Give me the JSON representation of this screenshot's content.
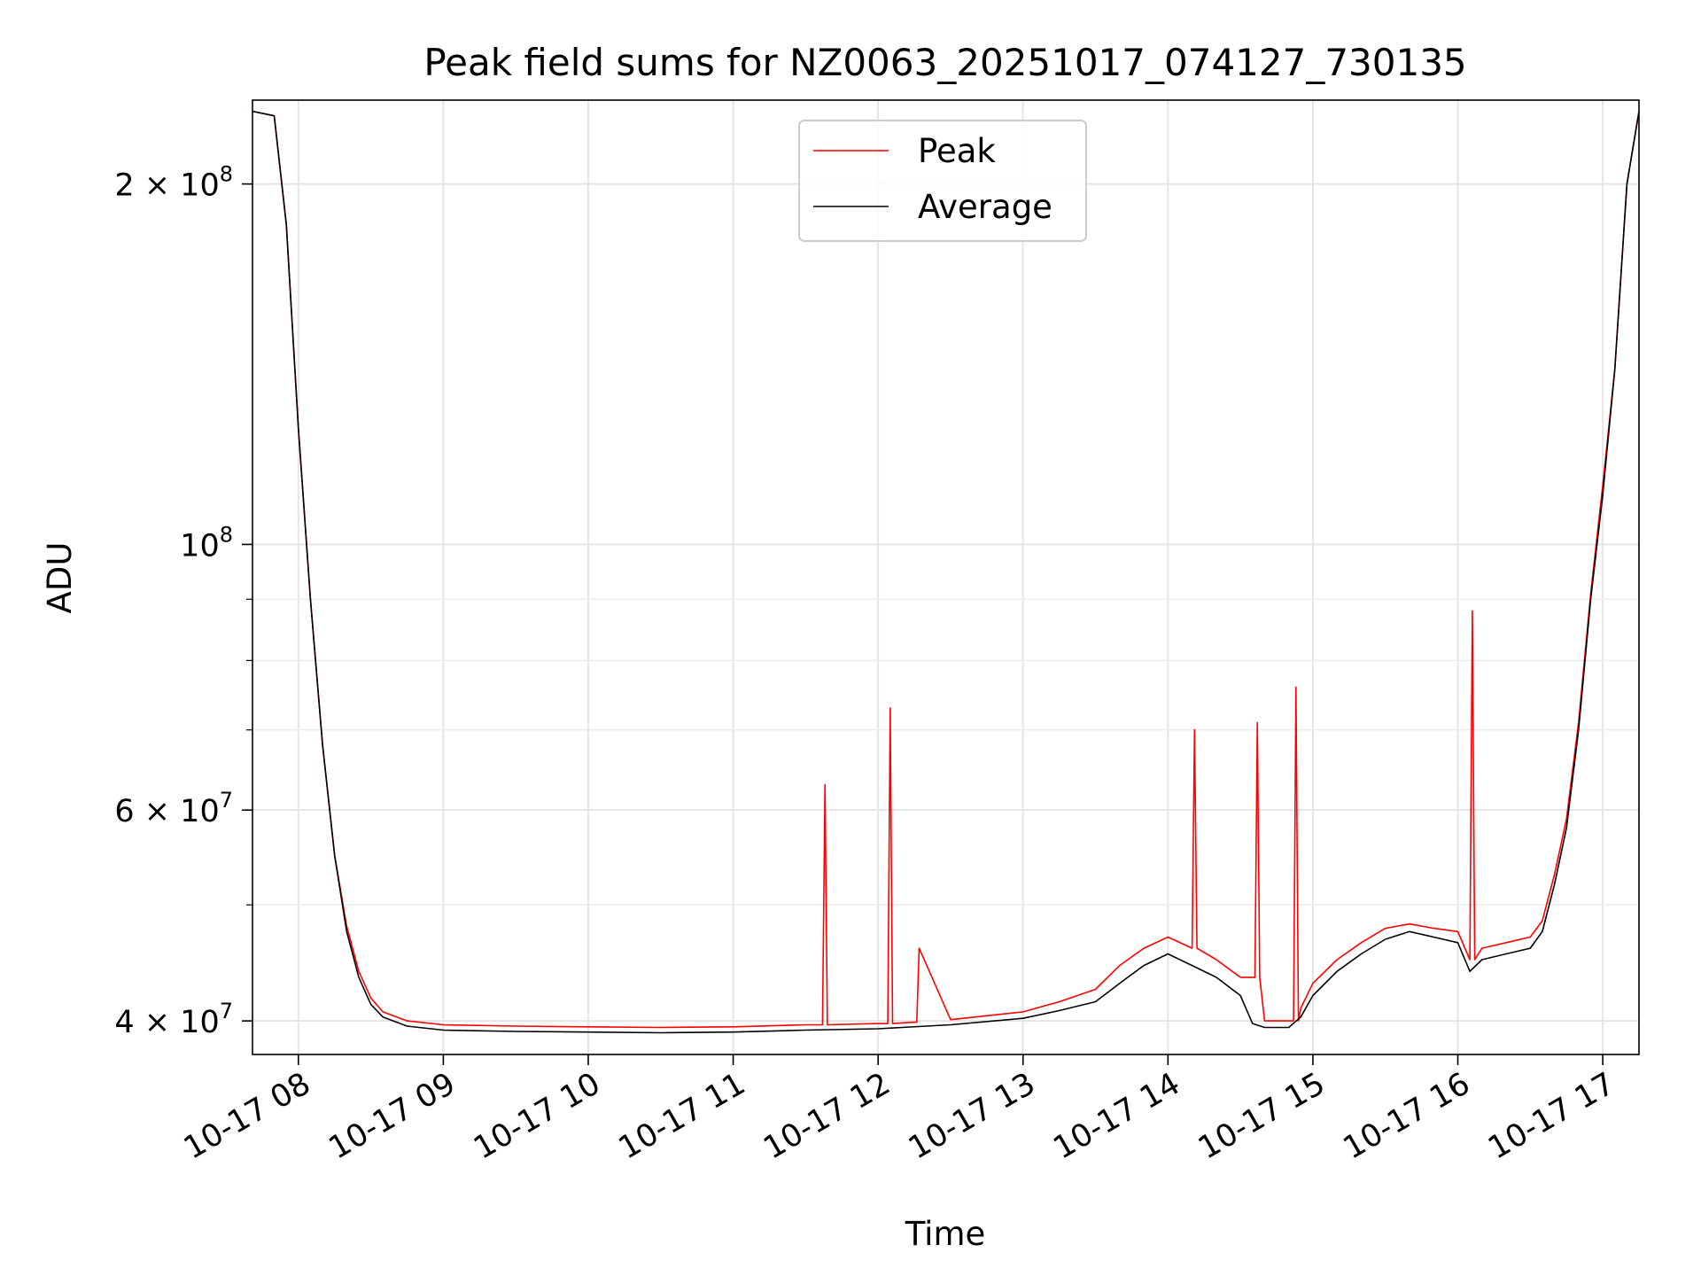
{
  "chart_data": {
    "type": "line",
    "title": "Peak field sums for NZ0063_20251017_074127_730135",
    "xlabel": "Time",
    "ylabel": "ADU",
    "x_axis": "time",
    "xlim": [
      "2025-10-17 07:41",
      "2025-10-17 17:15"
    ],
    "ylim": [
      37500000,
      235000000
    ],
    "y_scale": "log",
    "grid": true,
    "legend_position": "upper center",
    "x_ticks": [
      "10-17 08",
      "10-17 09",
      "10-17 10",
      "10-17 11",
      "10-17 12",
      "10-17 13",
      "10-17 14",
      "10-17 15",
      "10-17 16",
      "10-17 17"
    ],
    "y_ticks": [
      {
        "value": 40000000,
        "mantissa": "4",
        "exp": "7"
      },
      {
        "value": 60000000,
        "mantissa": "6",
        "exp": "7"
      },
      {
        "value": 100000000,
        "mantissa": "",
        "exp": "8"
      },
      {
        "value": 200000000,
        "mantissa": "2",
        "exp": "8"
      }
    ],
    "y_minor_ticks": [
      50000000,
      70000000,
      80000000,
      90000000
    ],
    "series": [
      {
        "name": "Average",
        "color": "#000000",
        "x": [
          "07:41",
          "07:50",
          "07:55",
          "08:00",
          "08:05",
          "08:10",
          "08:15",
          "08:20",
          "08:25",
          "08:30",
          "08:35",
          "08:45",
          "09:00",
          "09:30",
          "10:00",
          "10:30",
          "11:00",
          "11:30",
          "12:00",
          "12:30",
          "13:00",
          "13:15",
          "13:30",
          "13:40",
          "13:50",
          "14:00",
          "14:10",
          "14:20",
          "14:30",
          "14:35",
          "14:40",
          "14:50",
          "14:55",
          "15:00",
          "15:10",
          "15:20",
          "15:30",
          "15:40",
          "15:50",
          "16:00",
          "16:05",
          "16:10",
          "16:20",
          "16:30",
          "16:35",
          "16:40",
          "16:45",
          "16:50",
          "16:55",
          "17:00",
          "17:05",
          "17:10",
          "17:15"
        ],
        "y": [
          230000000,
          228000000,
          185000000,
          125000000,
          90000000,
          68000000,
          55000000,
          47500000,
          43500000,
          41300000,
          40300000,
          39600000,
          39300000,
          39200000,
          39150000,
          39100000,
          39150000,
          39300000,
          39400000,
          39700000,
          40200000,
          40800000,
          41500000,
          43000000,
          44500000,
          45500000,
          44500000,
          43500000,
          42000000,
          39800000,
          39500000,
          39500000,
          40300000,
          42000000,
          44000000,
          45500000,
          46800000,
          47500000,
          47000000,
          46500000,
          44000000,
          45000000,
          45500000,
          46000000,
          47500000,
          52000000,
          58000000,
          70000000,
          90000000,
          110000000,
          140000000,
          200000000,
          230000000
        ]
      },
      {
        "name": "Peak",
        "color": "#ff0000",
        "x": [
          "07:41",
          "07:50",
          "07:55",
          "08:00",
          "08:05",
          "08:10",
          "08:15",
          "08:20",
          "08:25",
          "08:30",
          "08:35",
          "08:45",
          "09:00",
          "09:30",
          "10:00",
          "10:30",
          "11:00",
          "11:30",
          "11:37",
          "11:38",
          "11:39",
          "12:00",
          "12:04",
          "12:05",
          "12:06",
          "12:15",
          "12:16",
          "12:17",
          "12:30",
          "13:00",
          "13:15",
          "13:30",
          "13:40",
          "13:50",
          "14:00",
          "14:10",
          "14:11",
          "14:12",
          "14:20",
          "14:30",
          "14:36",
          "14:37",
          "14:38",
          "14:40",
          "14:50",
          "14:52",
          "14:53",
          "14:54",
          "14:55",
          "15:00",
          "15:10",
          "15:20",
          "15:30",
          "15:40",
          "15:50",
          "16:00",
          "16:05",
          "16:06",
          "16:07",
          "16:10",
          "16:20",
          "16:30",
          "16:35",
          "16:40",
          "16:45",
          "16:50",
          "16:55",
          "17:00",
          "17:05",
          "17:10",
          "17:15"
        ],
        "y": [
          230000000,
          228000000,
          185000000,
          125000000,
          90000000,
          68000000,
          55000000,
          48000000,
          44000000,
          41800000,
          40700000,
          40000000,
          39700000,
          39600000,
          39550000,
          39500000,
          39550000,
          39700000,
          39700000,
          63000000,
          39700000,
          39800000,
          39800000,
          73000000,
          39800000,
          39900000,
          39900000,
          46000000,
          40100000,
          40700000,
          41500000,
          42500000,
          44500000,
          46000000,
          47000000,
          46000000,
          70000000,
          46000000,
          45000000,
          43500000,
          43500000,
          71000000,
          43500000,
          40000000,
          40000000,
          40000000,
          76000000,
          40000000,
          41000000,
          43000000,
          45000000,
          46500000,
          47800000,
          48200000,
          47800000,
          47500000,
          45000000,
          88000000,
          45000000,
          46000000,
          46500000,
          47000000,
          48500000,
          53000000,
          59000000,
          71000000,
          91000000,
          112000000,
          140000000,
          200000000,
          230000000
        ]
      }
    ]
  }
}
